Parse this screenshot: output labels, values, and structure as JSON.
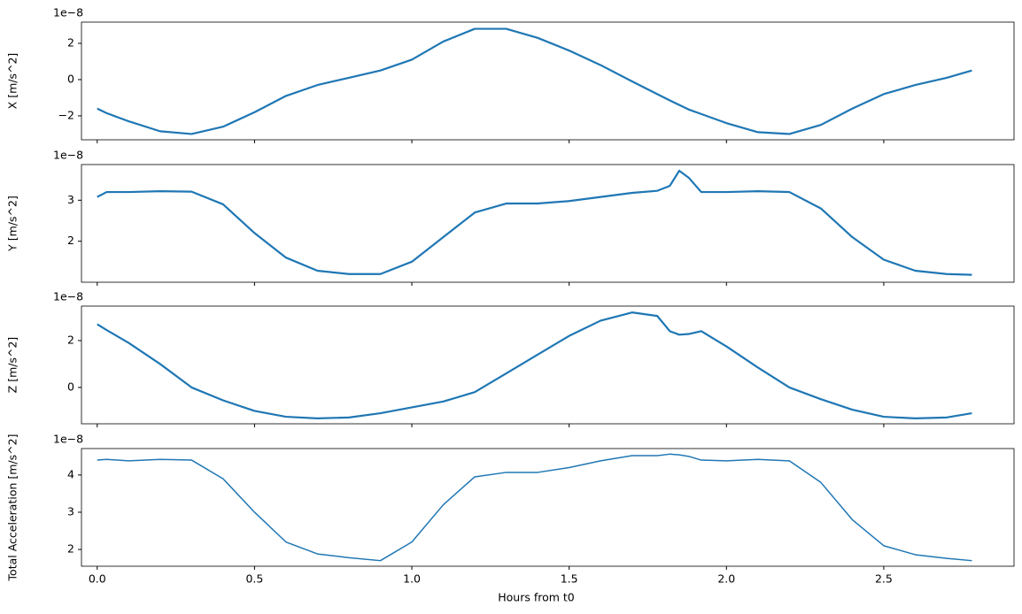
{
  "chart_data": [
    {
      "type": "line",
      "ylabel": "X [m/s^2]",
      "offset_text": "1e−8",
      "color": "#1f77b4",
      "linewidth": 2.2,
      "x": [
        0,
        0.03,
        0.1,
        0.2,
        0.3,
        0.4,
        0.5,
        0.6,
        0.7,
        0.8,
        0.9,
        1.0,
        1.1,
        1.2,
        1.3,
        1.4,
        1.5,
        1.6,
        1.7,
        1.78,
        1.82,
        1.85,
        1.88,
        1.92,
        2.0,
        2.1,
        2.2,
        2.3,
        2.4,
        2.5,
        2.6,
        2.7,
        2.78
      ],
      "values": [
        -1.6,
        -1.85,
        -2.3,
        -2.85,
        -3.0,
        -2.6,
        -1.8,
        -0.9,
        -0.3,
        0.1,
        0.5,
        1.1,
        2.1,
        2.8,
        2.8,
        2.3,
        1.6,
        0.8,
        -0.1,
        -0.8,
        -1.15,
        -1.4,
        -1.65,
        -1.9,
        -2.4,
        -2.9,
        -3.0,
        -2.5,
        -1.6,
        -0.8,
        -0.3,
        0.1,
        0.5
      ],
      "xlim": [
        -0.05,
        2.914
      ],
      "ylim": [
        -3.32,
        3.17
      ],
      "yticks": [
        {
          "value": -2,
          "label": "−2"
        },
        0,
        2
      ]
    },
    {
      "type": "line",
      "ylabel": "Y [m/s^2]",
      "offset_text": "1e−8",
      "color": "#1f77b4",
      "linewidth": 2.2,
      "x": [
        0,
        0.03,
        0.1,
        0.2,
        0.3,
        0.4,
        0.5,
        0.6,
        0.7,
        0.8,
        0.9,
        1.0,
        1.1,
        1.2,
        1.3,
        1.4,
        1.5,
        1.6,
        1.7,
        1.78,
        1.82,
        1.85,
        1.88,
        1.92,
        2.0,
        2.1,
        2.2,
        2.3,
        2.4,
        2.5,
        2.6,
        2.7,
        2.78
      ],
      "values": [
        3.08,
        3.2,
        3.2,
        3.22,
        3.21,
        2.9,
        2.2,
        1.6,
        1.28,
        1.2,
        1.2,
        1.5,
        2.1,
        2.7,
        2.92,
        2.92,
        2.98,
        3.08,
        3.18,
        3.23,
        3.35,
        3.72,
        3.55,
        3.2,
        3.2,
        3.22,
        3.2,
        2.8,
        2.1,
        1.55,
        1.28,
        1.2,
        1.18
      ],
      "xlim": [
        -0.05,
        2.914
      ],
      "ylim": [
        1.0,
        3.87
      ],
      "yticks": [
        2,
        3
      ]
    },
    {
      "type": "line",
      "ylabel": "Z [m/s^2]",
      "offset_text": "1e−8",
      "color": "#1f77b4",
      "linewidth": 2.2,
      "x": [
        0,
        0.03,
        0.1,
        0.2,
        0.3,
        0.4,
        0.5,
        0.6,
        0.7,
        0.8,
        0.9,
        1.0,
        1.1,
        1.2,
        1.3,
        1.4,
        1.5,
        1.6,
        1.7,
        1.78,
        1.82,
        1.85,
        1.88,
        1.92,
        2.0,
        2.1,
        2.2,
        2.3,
        2.4,
        2.5,
        2.6,
        2.7,
        2.78
      ],
      "values": [
        2.7,
        2.45,
        1.9,
        1.0,
        0.0,
        -0.55,
        -1.0,
        -1.25,
        -1.32,
        -1.28,
        -1.1,
        -0.85,
        -0.6,
        -0.2,
        0.6,
        1.4,
        2.2,
        2.85,
        3.2,
        3.05,
        2.4,
        2.25,
        2.28,
        2.4,
        1.75,
        0.85,
        0.0,
        -0.5,
        -0.95,
        -1.25,
        -1.32,
        -1.28,
        -1.1
      ],
      "xlim": [
        -0.05,
        2.914
      ],
      "ylim": [
        -1.55,
        3.47
      ],
      "yticks": [
        0,
        2
      ]
    },
    {
      "type": "line",
      "ylabel": "Total Acceleration [m/s^2]",
      "offset_text": "1e−8",
      "xlabel": "Hours from t0",
      "color": "#1f77b4",
      "linewidth": 1.5,
      "x": [
        0,
        0.03,
        0.1,
        0.2,
        0.3,
        0.4,
        0.5,
        0.6,
        0.7,
        0.8,
        0.9,
        1.0,
        1.1,
        1.2,
        1.3,
        1.4,
        1.5,
        1.6,
        1.7,
        1.78,
        1.82,
        1.85,
        1.88,
        1.92,
        2.0,
        2.1,
        2.2,
        2.3,
        2.4,
        2.5,
        2.6,
        2.7,
        2.78
      ],
      "values": [
        4.4,
        4.42,
        4.38,
        4.42,
        4.4,
        3.9,
        3.0,
        2.2,
        1.88,
        1.78,
        1.7,
        2.2,
        3.2,
        3.95,
        4.07,
        4.07,
        4.2,
        4.38,
        4.52,
        4.52,
        4.56,
        4.54,
        4.5,
        4.4,
        4.38,
        4.42,
        4.38,
        3.8,
        2.8,
        2.1,
        1.86,
        1.76,
        1.7
      ],
      "xlim": [
        -0.05,
        2.914
      ],
      "ylim": [
        1.55,
        4.71
      ],
      "yticks": [
        2,
        3,
        4
      ],
      "xticks": [
        {
          "value": 0,
          "label": "0.0"
        },
        0.5,
        {
          "value": 1,
          "label": "1.0"
        },
        1.5,
        {
          "value": 2,
          "label": "2.0"
        },
        2.5
      ]
    }
  ]
}
